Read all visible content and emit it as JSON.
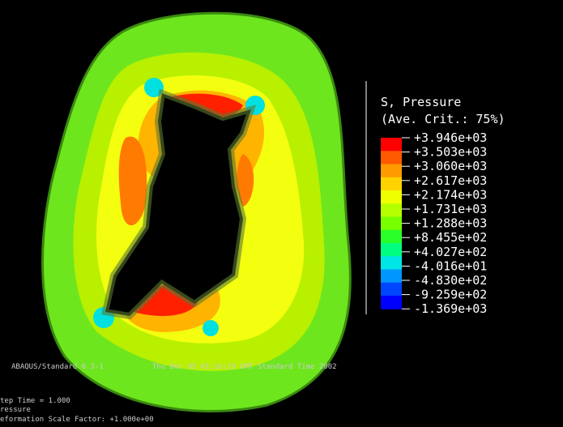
{
  "legend": {
    "title": "S, Pressure",
    "subtitle": "(Ave. Crit.: 75%)",
    "labels": [
      "+3.946e+03",
      "+3.503e+03",
      "+3.060e+03",
      "+2.617e+03",
      "+2.174e+03",
      "+1.731e+03",
      "+1.288e+03",
      "+8.455e+02",
      "+4.027e+02",
      "-4.016e+01",
      "-4.830e+02",
      "-9.259e+02",
      "-1.369e+03"
    ],
    "colors": [
      "#ff0000",
      "#ff5a00",
      "#ff9a00",
      "#ffd200",
      "#f0ff00",
      "#b4ff00",
      "#78ff00",
      "#2aff2a",
      "#00ff80",
      "#00e6e6",
      "#0096ff",
      "#0046ff",
      "#0000ff"
    ]
  },
  "footer": {
    "line1": "ABAQUS/Standard 6.3-1",
    "line1_date": "Thu Dec 05 01:16:29 GMT Standard Time 2002",
    "step": "tep Time =    1.000",
    "variable": "ressure",
    "scale": "eformation Scale Factor: +1.000e+00"
  }
}
